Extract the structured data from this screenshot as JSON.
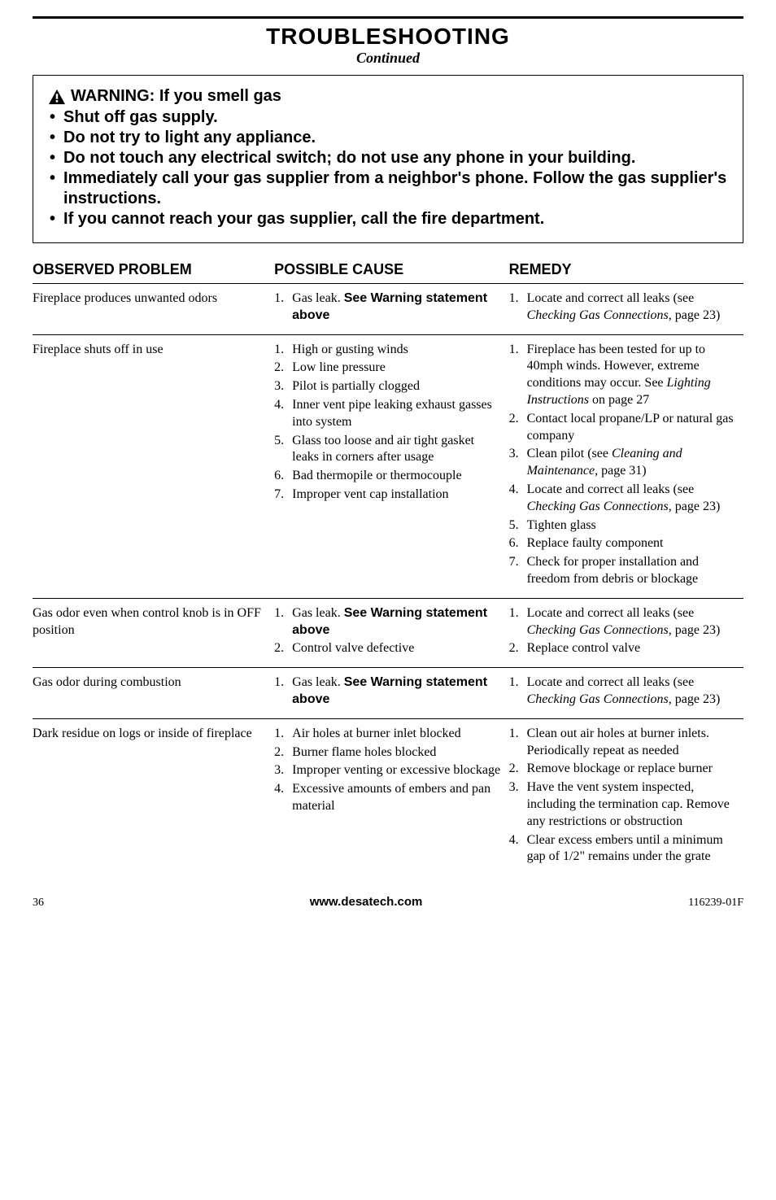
{
  "header": {
    "title": "TROUBLESHOOTING",
    "subtitle": "Continued"
  },
  "warning": {
    "headline": "WARNING: If you smell gas",
    "bullets": [
      "Shut off gas supply.",
      "Do not try to light any appliance.",
      "Do not touch any electrical switch; do not use any phone in your building.",
      "Immediately call your gas supplier from a neighbor's phone. Follow the gas supplier's instructions.",
      "If you cannot reach your gas supplier, call the fire department."
    ]
  },
  "table": {
    "headers": {
      "problem": "OBSERVED PROBLEM",
      "cause": "POSSIBLE CAUSE",
      "remedy": "REMEDY"
    },
    "rows": [
      {
        "problem": "Fireplace produces unwanted odors",
        "causes": [
          {
            "pre": "Gas leak. ",
            "bold": "See Warning statement above"
          }
        ],
        "remedies": [
          {
            "pre": "Locate and correct all leaks (see ",
            "ital": "Checking Gas Connections",
            "post": ", page 23)"
          }
        ]
      },
      {
        "problem": "Fireplace shuts off in use",
        "causes": [
          {
            "pre": "High or gusting winds"
          },
          {
            "pre": "Low line pressure"
          },
          {
            "pre": "Pilot is partially clogged"
          },
          {
            "pre": "Inner vent pipe leaking exhaust gasses into system"
          },
          {
            "pre": "Glass too loose and air tight gasket leaks in corners after usage"
          },
          {
            "pre": "Bad thermopile or thermocouple"
          },
          {
            "pre": "Improper vent cap installation"
          }
        ],
        "remedies": [
          {
            "pre": "Fireplace has been tested for up to 40mph winds. However, extreme conditions may occur. See ",
            "ital": "Lighting Instructions",
            "post": " on page 27"
          },
          {
            "pre": "Contact local propane/LP or natural gas company"
          },
          {
            "pre": "Clean pilot (see ",
            "ital": "Cleaning and Maintenance,",
            "post": " page 31)"
          },
          {
            "pre": "Locate and correct all leaks (see ",
            "ital": "Checking Gas Connections",
            "post": ", page 23)"
          },
          {
            "pre": "Tighten glass"
          },
          {
            "pre": "Replace faulty component"
          },
          {
            "pre": "Check for proper installation and freedom from debris or blockage"
          }
        ]
      },
      {
        "problem": "Gas odor even when control knob is in OFF position",
        "causes": [
          {
            "pre": "Gas leak. ",
            "bold": "See Warning statement above"
          },
          {
            "pre": "Control valve defective"
          }
        ],
        "remedies": [
          {
            "pre": "Locate and correct all leaks (see ",
            "ital": "Checking Gas Connections",
            "post": ", page 23)"
          },
          {
            "pre": "Replace control valve"
          }
        ]
      },
      {
        "problem": "Gas odor during combustion",
        "causes": [
          {
            "pre": "Gas leak. ",
            "bold": "See Warning statement above"
          }
        ],
        "remedies": [
          {
            "pre": "Locate and correct all leaks (see ",
            "ital": "Checking Gas Connections",
            "post": ", page 23)"
          }
        ]
      },
      {
        "problem": "Dark residue on logs or inside of fireplace",
        "causes": [
          {
            "pre": "Air holes at burner inlet blocked"
          },
          {
            "pre": "Burner flame holes blocked"
          },
          {
            "pre": "Improper venting or excessive blockage"
          },
          {
            "pre": "Excessive amounts of embers and pan material"
          }
        ],
        "remedies": [
          {
            "pre": "Clean out air holes at burner inlets. Periodically repeat as needed"
          },
          {
            "pre": "Remove blockage or replace burner"
          },
          {
            "pre": "Have the vent system inspected, including the termination cap. Remove any restrictions or obstruction"
          },
          {
            "pre": "Clear excess embers until a minimum gap of 1/2\" remains under the grate"
          }
        ]
      }
    ]
  },
  "footer": {
    "page": "36",
    "url": "www.desatech.com",
    "docnum": "116239-01F"
  }
}
